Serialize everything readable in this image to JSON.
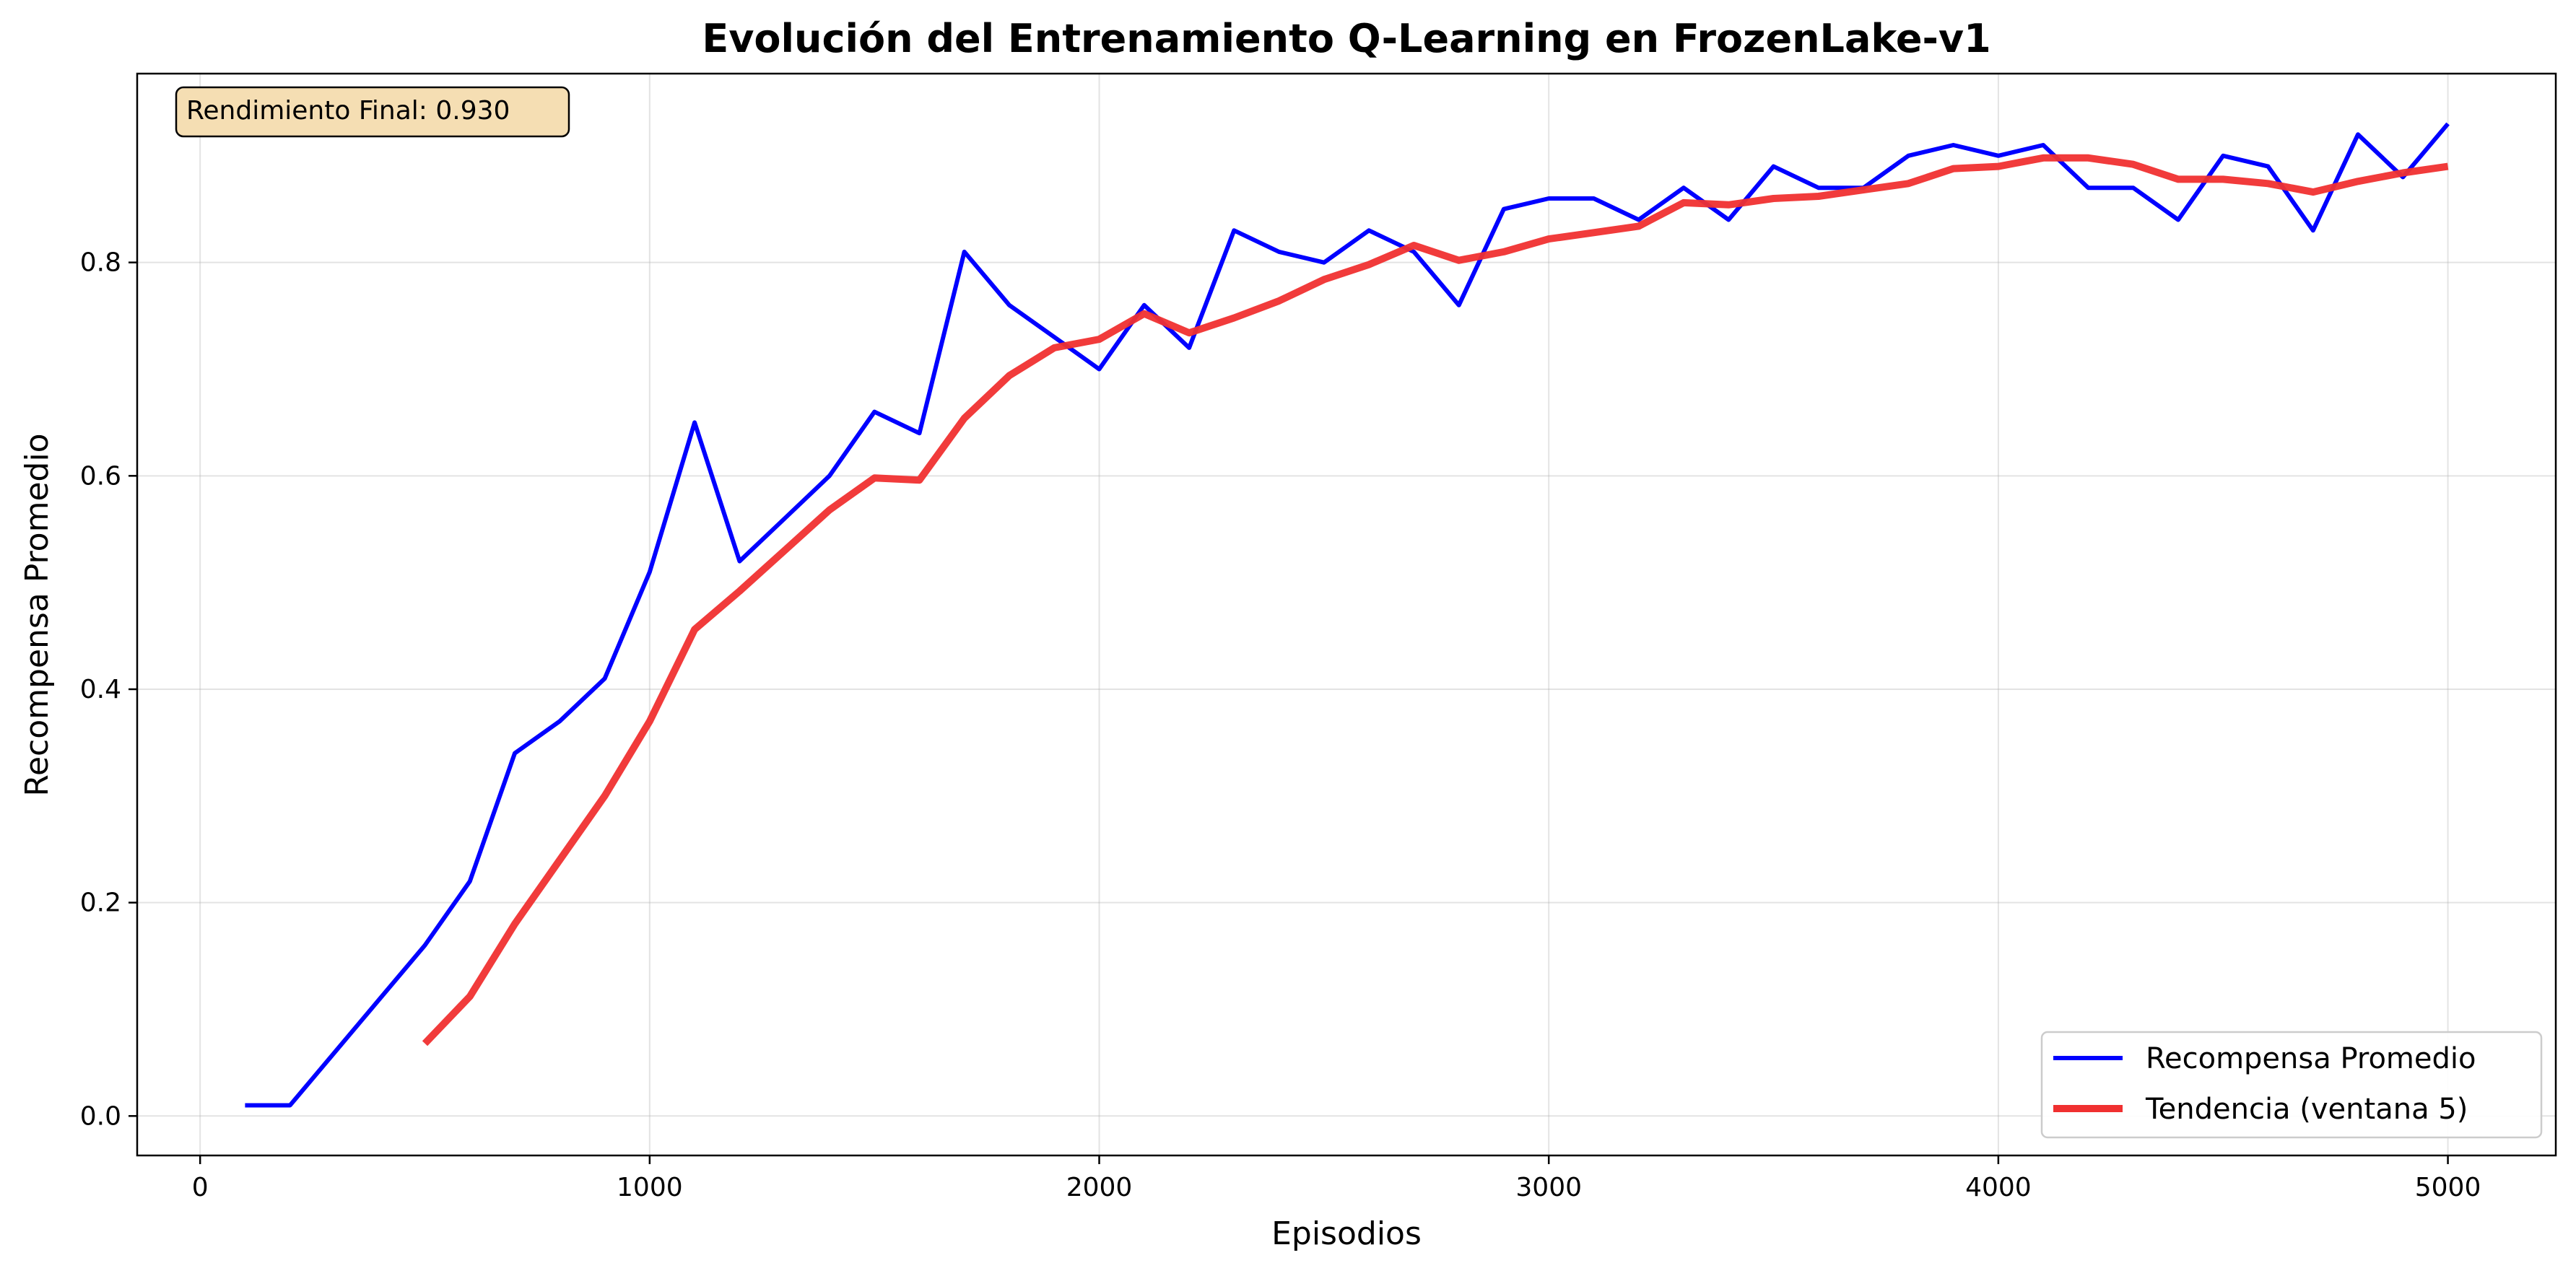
{
  "chart_data": {
    "type": "line",
    "title": "Evolución del Entrenamiento Q-Learning en FrozenLake-v1",
    "xlabel": "Episodios",
    "ylabel": "Recompensa Promedio",
    "xlim": [
      -140,
      5240
    ],
    "ylim": [
      -0.037,
      0.977
    ],
    "xticks": [
      0,
      1000,
      2000,
      3000,
      4000,
      5000
    ],
    "xtick_labels": [
      "0",
      "1000",
      "2000",
      "3000",
      "4000",
      "5000"
    ],
    "yticks": [
      0.0,
      0.2,
      0.4,
      0.6,
      0.8
    ],
    "ytick_labels": [
      "0.0",
      "0.2",
      "0.4",
      "0.6",
      "0.8"
    ],
    "grid": true,
    "legend_position": "bottom-right",
    "annotation": "Rendimiento Final: 0.930",
    "series": [
      {
        "name": "Recompensa Promedio",
        "color": "#0000ff",
        "x": [
          100,
          200,
          300,
          400,
          500,
          600,
          700,
          800,
          900,
          1000,
          1100,
          1200,
          1300,
          1400,
          1500,
          1600,
          1700,
          1800,
          1900,
          2000,
          2100,
          2200,
          2300,
          2400,
          2500,
          2600,
          2700,
          2800,
          2900,
          3000,
          3100,
          3200,
          3300,
          3400,
          3500,
          3600,
          3700,
          3800,
          3900,
          4000,
          4100,
          4200,
          4300,
          4400,
          4500,
          4600,
          4700,
          4800,
          4900,
          5000
        ],
        "y": [
          0.01,
          0.01,
          0.06,
          0.11,
          0.16,
          0.22,
          0.34,
          0.37,
          0.41,
          0.51,
          0.65,
          0.52,
          0.56,
          0.6,
          0.66,
          0.64,
          0.81,
          0.76,
          0.73,
          0.7,
          0.76,
          0.72,
          0.83,
          0.81,
          0.8,
          0.83,
          0.81,
          0.76,
          0.85,
          0.86,
          0.86,
          0.84,
          0.87,
          0.84,
          0.89,
          0.87,
          0.87,
          0.9,
          0.91,
          0.9,
          0.91,
          0.87,
          0.87,
          0.84,
          0.9,
          0.89,
          0.83,
          0.92,
          0.88,
          0.93
        ]
      },
      {
        "name": "Tendencia (ventana 5)",
        "color": "#f03030",
        "x": [
          500,
          600,
          700,
          800,
          900,
          1000,
          1100,
          1200,
          1300,
          1400,
          1500,
          1600,
          1700,
          1800,
          1900,
          2000,
          2100,
          2200,
          2300,
          2400,
          2500,
          2600,
          2700,
          2800,
          2900,
          3000,
          3100,
          3200,
          3300,
          3400,
          3500,
          3600,
          3700,
          3800,
          3900,
          4000,
          4100,
          4200,
          4300,
          4400,
          4500,
          4600,
          4700,
          4800,
          4900,
          5000
        ],
        "y": [
          0.068,
          0.112,
          0.18,
          0.24,
          0.3,
          0.37,
          0.456,
          0.492,
          0.53,
          0.568,
          0.598,
          0.596,
          0.654,
          0.694,
          0.72,
          0.728,
          0.752,
          0.734,
          0.748,
          0.764,
          0.784,
          0.798,
          0.816,
          0.802,
          0.81,
          0.822,
          0.828,
          0.834,
          0.856,
          0.854,
          0.86,
          0.862,
          0.868,
          0.874,
          0.888,
          0.89,
          0.898,
          0.898,
          0.892,
          0.878,
          0.878,
          0.874,
          0.866,
          0.876,
          0.884,
          0.89
        ]
      }
    ]
  }
}
